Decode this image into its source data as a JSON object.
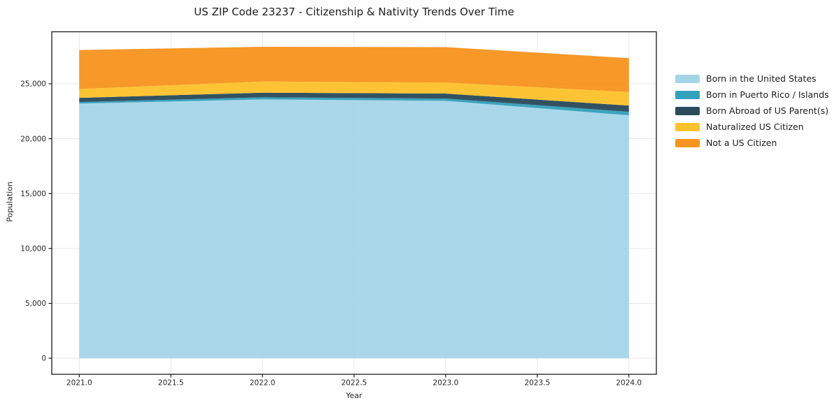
{
  "chart_data": {
    "type": "area",
    "stacked": true,
    "title": "US ZIP Code 23237 - Citizenship & Nativity Trends Over Time",
    "xlabel": "Year",
    "ylabel": "Population",
    "x": [
      2021,
      2022,
      2023,
      2024
    ],
    "series": [
      {
        "name": "Born in the United States",
        "color": "#a5d5e8",
        "values": [
          23200,
          23580,
          23450,
          22130
        ]
      },
      {
        "name": "Born in Puerto Rico / Islands",
        "color": "#33a0bc",
        "values": [
          140,
          190,
          210,
          320
        ]
      },
      {
        "name": "Born Abroad of US Parent(s)",
        "color": "#2a4b5c",
        "values": [
          380,
          420,
          450,
          570
        ]
      },
      {
        "name": "Naturalized US Citizen",
        "color": "#fcc22d",
        "values": [
          810,
          1020,
          1000,
          1230
        ]
      },
      {
        "name": "Not a US Citizen",
        "color": "#f7941f",
        "values": [
          3550,
          3160,
          3230,
          3090
        ]
      }
    ],
    "totals": [
      28080,
      28370,
      28340,
      27340
    ],
    "x_ticks": {
      "values": [
        2021.0,
        2021.5,
        2022.0,
        2022.5,
        2023.0,
        2023.5,
        2024.0
      ],
      "labels": [
        "2021.0",
        "2021.5",
        "2022.0",
        "2022.5",
        "2023.0",
        "2023.5",
        "2024.0"
      ]
    },
    "y_ticks": {
      "values": [
        0,
        5000,
        10000,
        15000,
        20000,
        25000
      ],
      "labels": [
        "0",
        "5,000",
        "10,000",
        "15,000",
        "20,000",
        "25,000"
      ]
    },
    "xlim": [
      2020.85,
      2024.15
    ],
    "ylim": [
      -1460,
      29740
    ],
    "grid": true,
    "grid_color": "#e7e7e7",
    "axis_color": "#1a1a1a",
    "text_color": "#262626",
    "fill_opacity": 0.96,
    "legend_position": "outside-right"
  }
}
